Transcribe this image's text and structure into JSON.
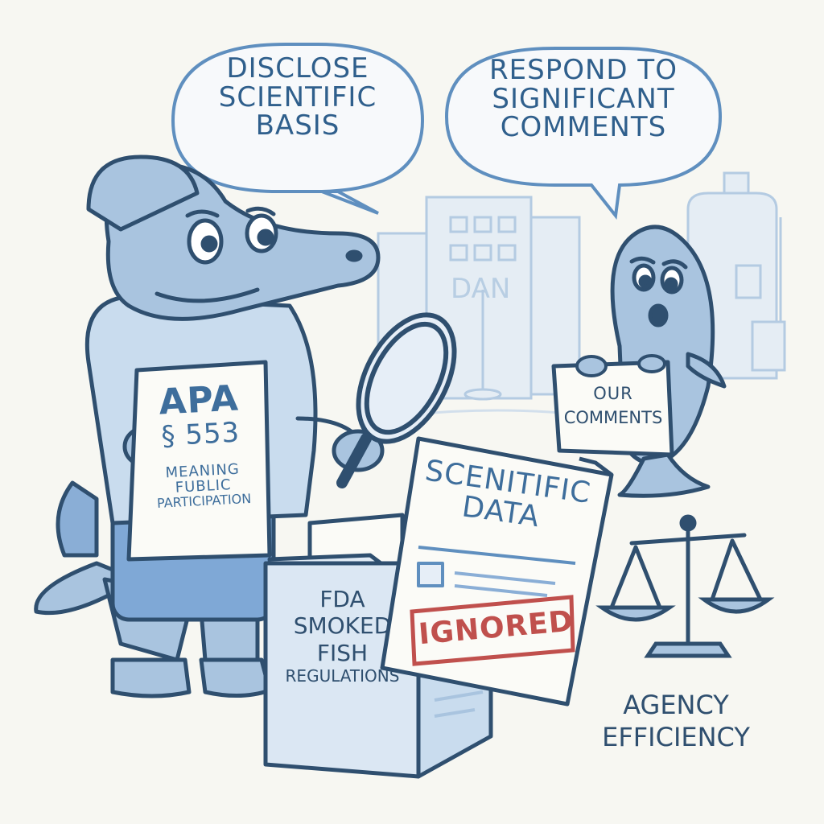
{
  "bubbles": {
    "left": {
      "line1": "DISCLOSE",
      "line2": "SCIENTIFIC",
      "line3": "BASIS"
    },
    "right": {
      "line1": "RESPOND TO",
      "line2": "SIGNIFICANT",
      "line3": "COMMENTS"
    }
  },
  "apa_sign": {
    "title": "APA",
    "section": "§ 553",
    "line1": "MEANING",
    "line2": "FUBLIC",
    "line3": "PARTICIPATION"
  },
  "fish_sign": {
    "line1": "OUR",
    "line2": "COMMENTS"
  },
  "background_sign": "DAN",
  "box": {
    "line1": "FDA",
    "line2": "SMOKED",
    "line3": "FISH",
    "line4": "REGULATIONS"
  },
  "document": {
    "line1": "SCENITIFIC",
    "line2": "DATA"
  },
  "stamp": "IGNORED",
  "caption": {
    "line1": "AGENCY",
    "line2": "EFFICIENCY"
  },
  "colors": {
    "ink": "#2f4f6f",
    "blue_fill": "#a9c4df",
    "light_blue": "#c9dcee",
    "stamp_red": "#c0504d",
    "paper": "#fbfbf7"
  }
}
